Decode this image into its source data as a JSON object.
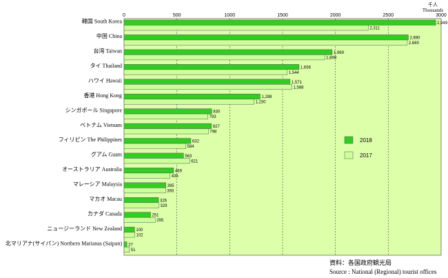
{
  "chart_data": {
    "type": "bar",
    "orientation": "horizontal",
    "categories": [
      "韓国 South Korea",
      "中国 China",
      "台湾 Taiwan",
      "タイ Thailand",
      "ハワイ Hawaii",
      "香港 Hong Kong",
      "シンガポール Singapore",
      "ベトナム Vietnam",
      "フィリピン The Philippines",
      "グアム Guam",
      "オーストラリア Australia",
      "マレーシア Malaysia",
      "マカオ Macau",
      "カナダ Canada",
      "ニュージーランド New Zealand",
      "北マリアナ(サイパン) Northern Marianas (Saipan)"
    ],
    "series": [
      {
        "name": "2018",
        "color": "#33cc22",
        "values": [
          2949,
          2690,
          1969,
          1656,
          1571,
          1288,
          830,
          827,
          632,
          563,
          469,
          395,
          326,
          251,
          100,
          27
        ],
        "labels": [
          "2,949",
          "2,690",
          "1,969",
          "1,656",
          "1,571",
          "1,288",
          "830",
          "827",
          "632",
          "563",
          "469",
          "395",
          "326",
          "251",
          "100",
          "27"
        ]
      },
      {
        "name": "2017",
        "color": "#ccff99",
        "values": [
          2311,
          2680,
          1899,
          1544,
          1588,
          1230,
          793,
          798,
          584,
          621,
          435,
          393,
          329,
          295,
          102,
          51
        ],
        "labels": [
          "2,311",
          "2,680",
          "1,899",
          "1,544",
          "1,588",
          "1,230",
          "793",
          "798",
          "584",
          "621",
          "435",
          "393",
          "329",
          "295",
          "102",
          "51"
        ]
      }
    ],
    "xlim": [
      0,
      3000
    ],
    "xticks": [
      0,
      500,
      1000,
      1500,
      2000,
      2500,
      3000
    ],
    "xtick_labels": [
      "0",
      "500",
      "1000",
      "1500",
      "2000",
      "2500",
      "3000"
    ],
    "unit_label_ja": "千人",
    "unit_label_en": "Thousands",
    "grid": "vertical dashed",
    "legend_placement": "right",
    "plot_background": "#ddffaa",
    "source_ja": "資料：各国政府観光局",
    "source_en": "Source : National (Regional) tourist offices"
  }
}
